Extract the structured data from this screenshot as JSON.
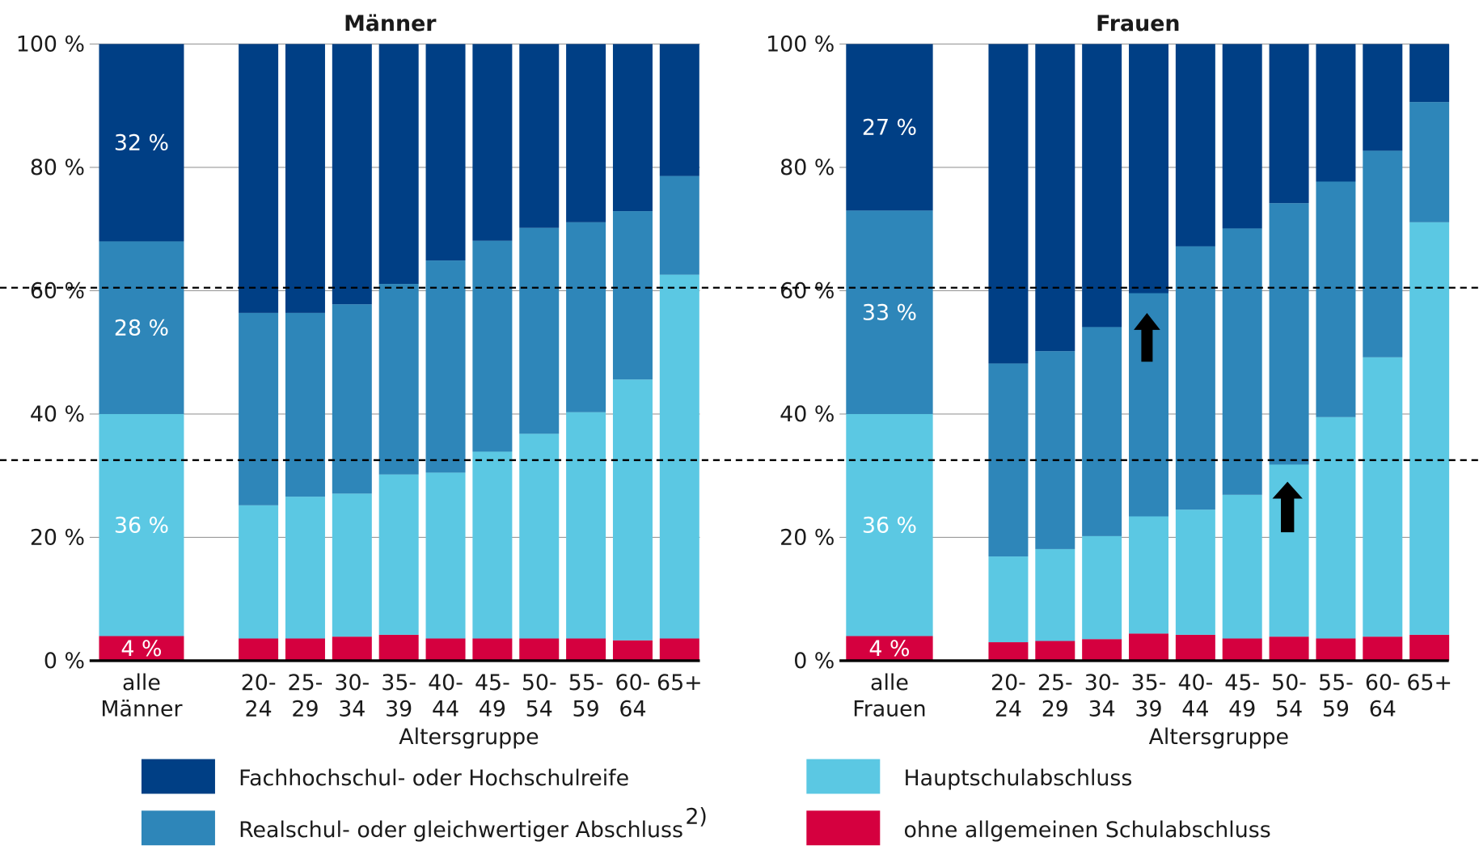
{
  "chart_data": [
    {
      "type": "stacked_bar",
      "title": "Männer",
      "x_label": "Altersgruppe",
      "categories": [
        "alle Männer",
        "20- 24",
        "25- 29",
        "30- 34",
        "35- 39",
        "40- 44",
        "45- 49",
        "50- 54",
        "55- 59",
        "60- 64",
        "65+"
      ],
      "ylim": [
        0,
        100
      ],
      "yticks": [
        {
          "value": 0,
          "label": "0 %"
        },
        {
          "value": 20,
          "label": "20 %"
        },
        {
          "value": 40,
          "label": "40 %"
        },
        {
          "value": 60,
          "label": "60 %"
        },
        {
          "value": 80,
          "label": "80 %"
        },
        {
          "value": 100,
          "label": "100 %"
        }
      ],
      "grid": true,
      "series": [
        {
          "name": "ohne allgemeinen Schulabschluss",
          "color": "#d5003f",
          "values": [
            4,
            3.6,
            3.6,
            3.9,
            4.2,
            3.6,
            3.6,
            3.6,
            3.6,
            3.3,
            3.6
          ],
          "value_labels": [
            "4 %",
            null,
            null,
            null,
            null,
            null,
            null,
            null,
            null,
            null,
            null
          ]
        },
        {
          "name": "Hauptschulabschluss",
          "color": "#5bc8e3",
          "values": [
            36,
            21.6,
            23,
            23.2,
            26,
            26.9,
            30.3,
            33.2,
            36.7,
            42.3,
            59
          ],
          "value_labels": [
            "36 %",
            null,
            null,
            null,
            null,
            null,
            null,
            null,
            null,
            null,
            null
          ]
        },
        {
          "name": "Realschul- oder gleichwertiger Abschluss",
          "footnote": "2)",
          "color": "#2e86b9",
          "values": [
            28,
            31.2,
            29.8,
            30.7,
            30.9,
            34.4,
            34.2,
            33.4,
            30.8,
            27.3,
            16
          ],
          "value_labels": [
            "28 %",
            null,
            null,
            null,
            null,
            null,
            null,
            null,
            null,
            null,
            null
          ]
        },
        {
          "name": "Fachhochschul- oder Hochschulreife",
          "color": "#003f85",
          "values": [
            32,
            43.6,
            43.6,
            42.2,
            38.9,
            35.1,
            31.9,
            29.8,
            28.9,
            27.1,
            21.4
          ],
          "value_labels": [
            "32 %",
            null,
            null,
            null,
            null,
            null,
            null,
            null,
            null,
            null,
            null
          ]
        }
      ]
    },
    {
      "type": "stacked_bar",
      "title": "Frauen",
      "x_label": "Altersgruppe",
      "categories": [
        "alle Frauen",
        "20- 24",
        "25- 29",
        "30- 34",
        "35- 39",
        "40- 44",
        "45- 49",
        "50- 54",
        "55- 59",
        "60- 64",
        "65+"
      ],
      "ylim": [
        0,
        100
      ],
      "yticks": [
        {
          "value": 0,
          "label": "0 %"
        },
        {
          "value": 20,
          "label": "20 %"
        },
        {
          "value": 40,
          "label": "40 %"
        },
        {
          "value": 60,
          "label": "60 %"
        },
        {
          "value": 80,
          "label": "80 %"
        },
        {
          "value": 100,
          "label": "100 %"
        }
      ],
      "grid": true,
      "series": [
        {
          "color": "#d5003f",
          "values": [
            4,
            3,
            3.2,
            3.5,
            4.4,
            4.2,
            3.6,
            3.9,
            3.6,
            3.9,
            4.2
          ],
          "value_labels": [
            "4 %",
            null,
            null,
            null,
            null,
            null,
            null,
            null,
            null,
            null,
            null
          ]
        },
        {
          "color": "#5bc8e3",
          "values": [
            36,
            13.9,
            14.9,
            16.7,
            19,
            20.3,
            23.3,
            27.9,
            35.9,
            45.3,
            66.9
          ],
          "value_labels": [
            "36 %",
            null,
            null,
            null,
            null,
            null,
            null,
            null,
            null,
            null,
            null
          ]
        },
        {
          "color": "#2e86b9",
          "values": [
            33,
            31.3,
            32.1,
            33.9,
            36.2,
            42.7,
            43.2,
            42.4,
            38.2,
            33.5,
            19.5
          ],
          "value_labels": [
            "33 %",
            null,
            null,
            null,
            null,
            null,
            null,
            null,
            null,
            null,
            null
          ]
        },
        {
          "color": "#003f85",
          "values": [
            27,
            51.8,
            49.8,
            45.9,
            40.4,
            32.8,
            29.9,
            25.8,
            22.3,
            17.3,
            9.4
          ],
          "value_labels": [
            "27 %",
            null,
            null,
            null,
            null,
            null,
            null,
            null,
            null,
            null,
            null
          ]
        }
      ]
    }
  ]
}
